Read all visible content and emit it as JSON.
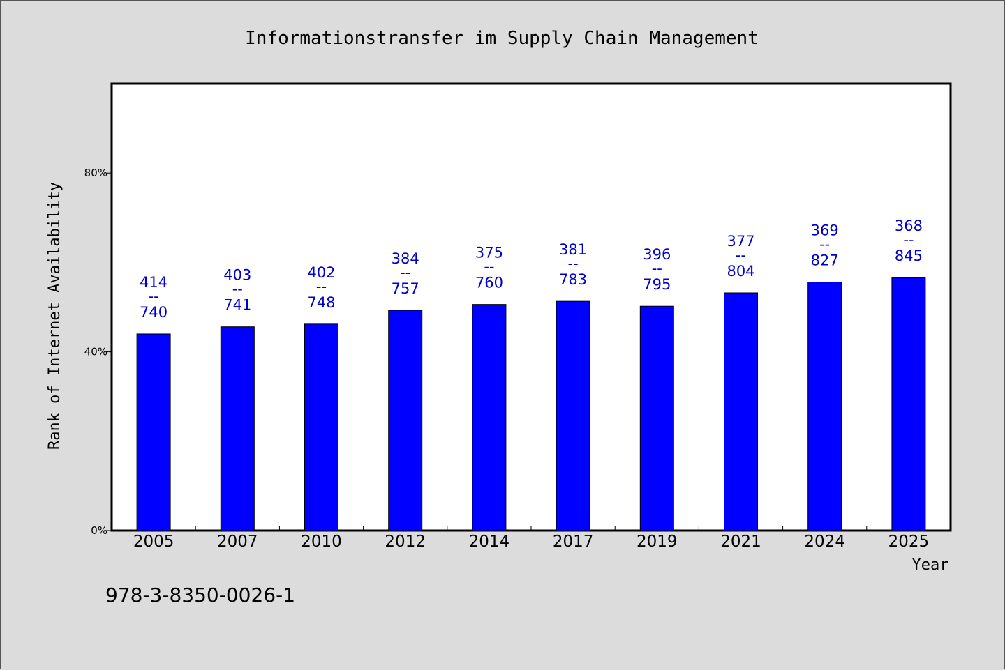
{
  "chart_data": {
    "type": "bar",
    "title": "Informationstransfer im Supply Chain Management",
    "xlabel": "Year",
    "ylabel": "Rank of Internet Availability",
    "categories": [
      "2005",
      "2007",
      "2010",
      "2012",
      "2014",
      "2017",
      "2019",
      "2021",
      "2024",
      "2025"
    ],
    "values": [
      44,
      45.6,
      46.2,
      49.3,
      50.6,
      51.3,
      50.2,
      53.2,
      55.6,
      56.6
    ],
    "ylim": [
      0,
      100
    ],
    "yticks": [
      {
        "value": 0,
        "label": "0%"
      },
      {
        "value": 40,
        "label": "40%"
      },
      {
        "value": 80,
        "label": "80%"
      }
    ],
    "labels_top": [
      "414",
      "403",
      "402",
      "384",
      "375",
      "381",
      "396",
      "377",
      "369",
      "368"
    ],
    "labels_mid": [
      "--",
      "--",
      "--",
      "--",
      "--",
      "--",
      "--",
      "--",
      "--",
      "--"
    ],
    "labels_bottom": [
      "740",
      "741",
      "748",
      "757",
      "760",
      "783",
      "795",
      "804",
      "827",
      "845"
    ],
    "grid": false,
    "colors": {
      "bar": "#0000ff",
      "label": "#0000cc",
      "background": "#dcdcdc",
      "plot": "#ffffff"
    }
  },
  "footer_text": "978-3-8350-0026-1"
}
